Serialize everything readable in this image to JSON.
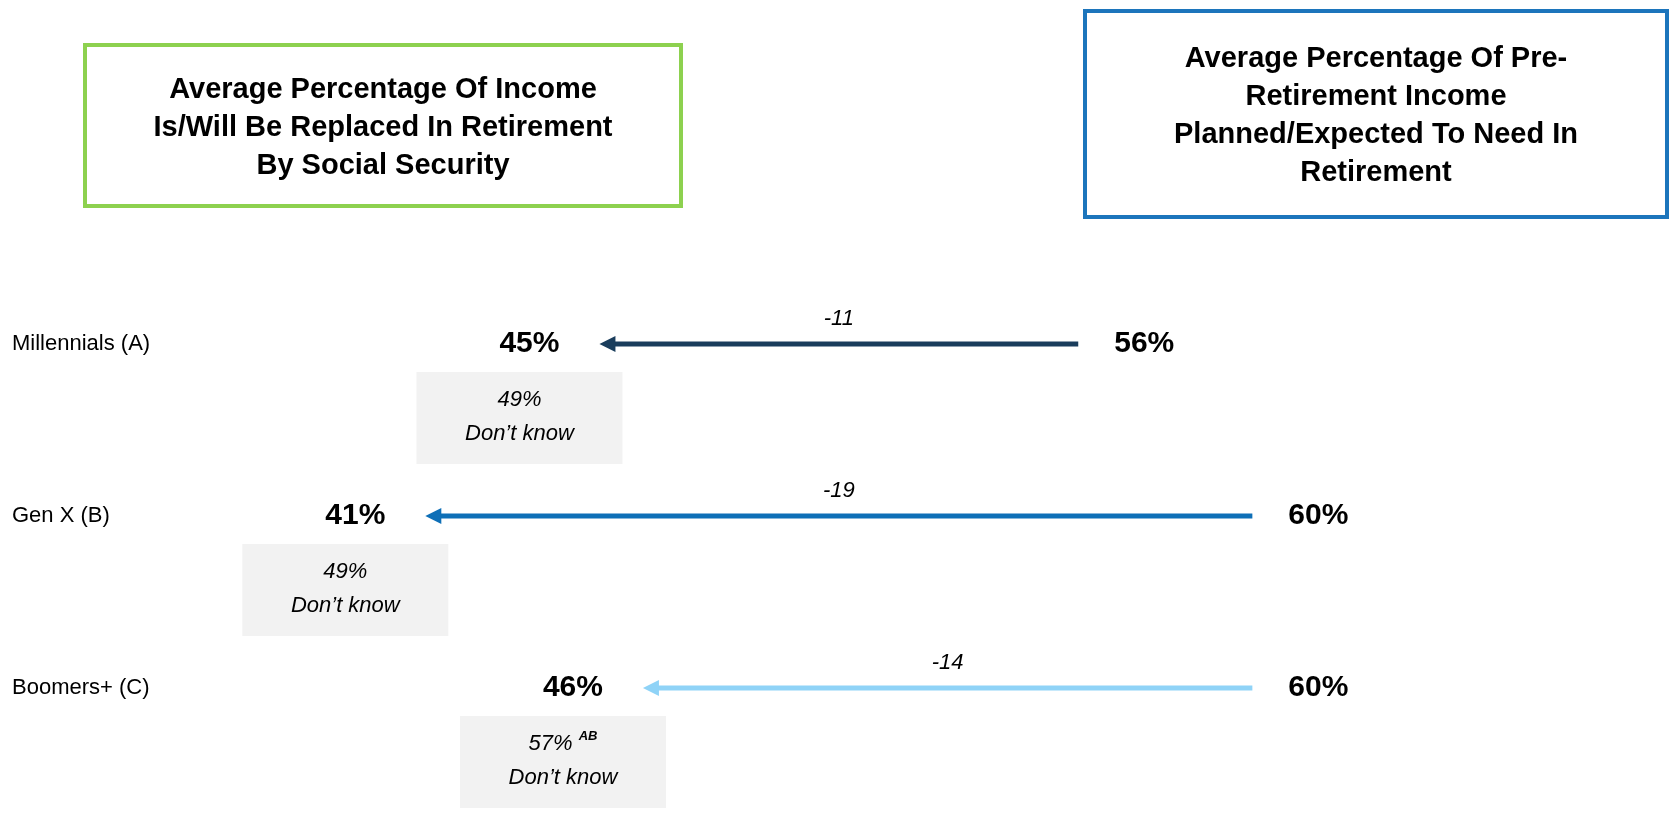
{
  "chart_data": {
    "type": "other",
    "categories": [
      "Millennials (A)",
      "Gen X (B)",
      "Boomers+ (C)"
    ],
    "series": [
      {
        "values": [
          45,
          41,
          46
        ],
        "value_labels": [
          "45%",
          "41%",
          "46%"
        ]
      },
      {
        "values": [
          56,
          60,
          60
        ],
        "value_labels": [
          "56%",
          "60%",
          "60%"
        ]
      }
    ],
    "colors": [
      "#1a3d5c",
      "#0e6fb7",
      "#8fd3f7"
    ],
    "annotations": [
      "Average Percentage Of Income Is/Will Be Replaced In Retirement By Social Security",
      "Average Percentage Of Pre-Retirement Income Planned/Expected To Need In Retirement",
      "-11",
      "49%\nDon’t know",
      "-19",
      "49%\nDon’t know",
      "-14",
      "57% $^{AB}$\nDon’t know"
    ]
  }
}
